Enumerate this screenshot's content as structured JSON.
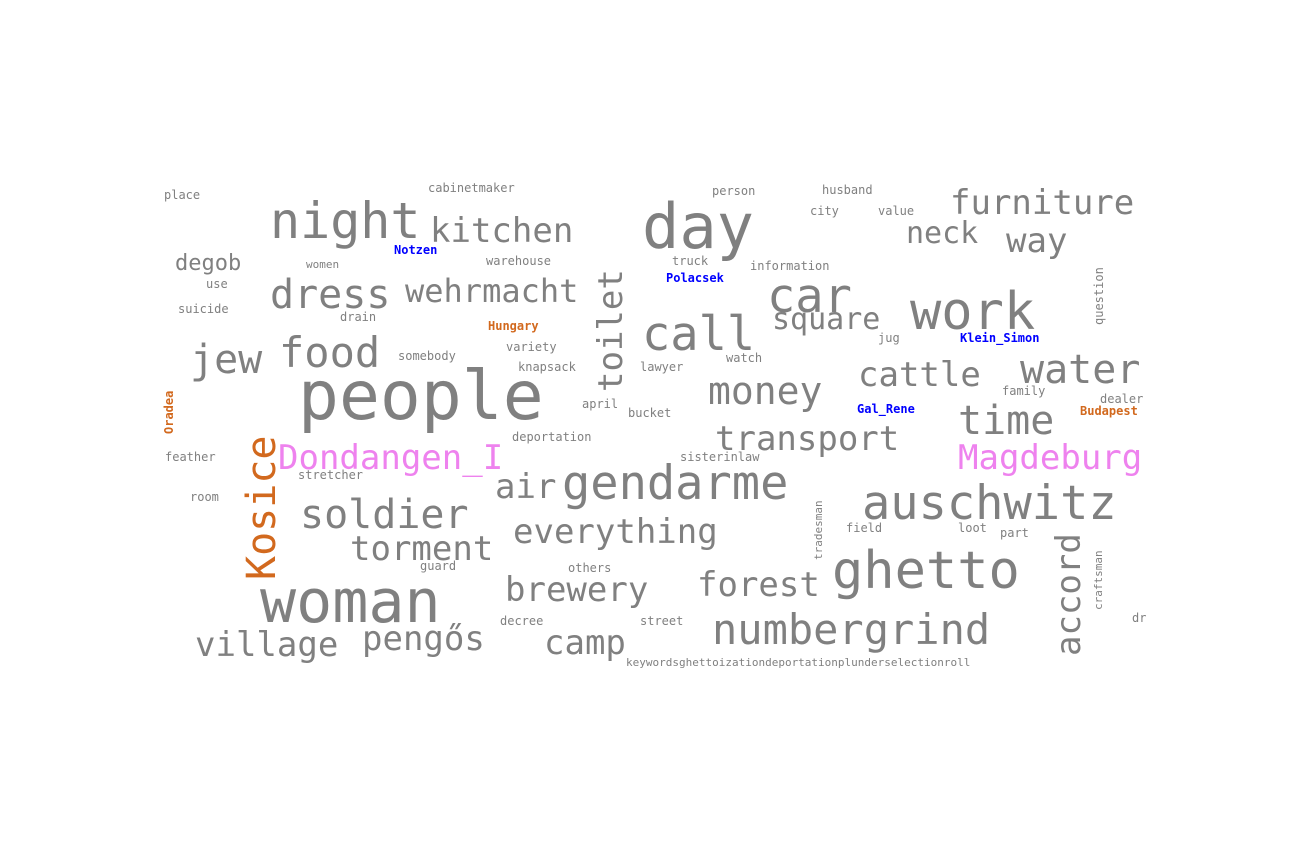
{
  "colors": {
    "default": "#808080",
    "orange": "#d2691e",
    "blue": "#0000ff",
    "magenta": "#ee82ee"
  },
  "words": [
    {
      "text": "people",
      "color": "#808080"
    },
    {
      "text": "woman",
      "color": "#808080"
    },
    {
      "text": "day",
      "color": "#808080"
    },
    {
      "text": "night",
      "color": "#808080"
    },
    {
      "text": "work",
      "color": "#808080"
    },
    {
      "text": "ghetto",
      "color": "#808080"
    },
    {
      "text": "auschwitz",
      "color": "#808080"
    },
    {
      "text": "gendarme",
      "color": "#808080"
    },
    {
      "text": "call",
      "color": "#808080"
    },
    {
      "text": "car",
      "color": "#808080"
    },
    {
      "text": "food",
      "color": "#808080"
    },
    {
      "text": "numbergrind",
      "color": "#808080"
    },
    {
      "text": "water",
      "color": "#808080"
    },
    {
      "text": "time",
      "color": "#808080"
    },
    {
      "text": "soldier",
      "color": "#808080"
    },
    {
      "text": "money",
      "color": "#808080"
    },
    {
      "text": "furniture",
      "color": "#808080"
    },
    {
      "text": "kitchen",
      "color": "#808080"
    },
    {
      "text": "dress",
      "color": "#808080"
    },
    {
      "text": "wehrmacht",
      "color": "#808080"
    },
    {
      "text": "jew",
      "color": "#808080"
    },
    {
      "text": "transport",
      "color": "#808080"
    },
    {
      "text": "cattle",
      "color": "#808080"
    },
    {
      "text": "square",
      "color": "#808080"
    },
    {
      "text": "neck",
      "color": "#808080"
    },
    {
      "text": "way",
      "color": "#808080"
    },
    {
      "text": "everything",
      "color": "#808080"
    },
    {
      "text": "torment",
      "color": "#808080"
    },
    {
      "text": "brewery",
      "color": "#808080"
    },
    {
      "text": "forest",
      "color": "#808080"
    },
    {
      "text": "village",
      "color": "#808080"
    },
    {
      "text": "pengős",
      "color": "#808080"
    },
    {
      "text": "camp",
      "color": "#808080"
    },
    {
      "text": "air",
      "color": "#808080"
    },
    {
      "text": "degob",
      "color": "#808080"
    },
    {
      "text": "toilet",
      "color": "#808080"
    },
    {
      "text": "accord",
      "color": "#808080"
    },
    {
      "text": "Kosice",
      "color": "#d2691e"
    },
    {
      "text": "Dondangen_I",
      "color": "#ee82ee"
    },
    {
      "text": "Magdeburg",
      "color": "#ee82ee"
    },
    {
      "text": "Notzen",
      "color": "#0000ff"
    },
    {
      "text": "Polacsek",
      "color": "#0000ff"
    },
    {
      "text": "Klein_Simon",
      "color": "#0000ff"
    },
    {
      "text": "Gal_Rene",
      "color": "#0000ff"
    },
    {
      "text": "Hungary",
      "color": "#d2691e"
    },
    {
      "text": "Budapest",
      "color": "#d2691e"
    },
    {
      "text": "Oradea",
      "color": "#d2691e"
    },
    {
      "text": "place",
      "color": "#808080"
    },
    {
      "text": "cabinetmaker",
      "color": "#808080"
    },
    {
      "text": "person",
      "color": "#808080"
    },
    {
      "text": "husband",
      "color": "#808080"
    },
    {
      "text": "city",
      "color": "#808080"
    },
    {
      "text": "value",
      "color": "#808080"
    },
    {
      "text": "women",
      "color": "#808080"
    },
    {
      "text": "warehouse",
      "color": "#808080"
    },
    {
      "text": "truck",
      "color": "#808080"
    },
    {
      "text": "information",
      "color": "#808080"
    },
    {
      "text": "use",
      "color": "#808080"
    },
    {
      "text": "suicide",
      "color": "#808080"
    },
    {
      "text": "drain",
      "color": "#808080"
    },
    {
      "text": "question",
      "color": "#808080"
    },
    {
      "text": "variety",
      "color": "#808080"
    },
    {
      "text": "jug",
      "color": "#808080"
    },
    {
      "text": "somebody",
      "color": "#808080"
    },
    {
      "text": "knapsack",
      "color": "#808080"
    },
    {
      "text": "lawyer",
      "color": "#808080"
    },
    {
      "text": "watch",
      "color": "#808080"
    },
    {
      "text": "family",
      "color": "#808080"
    },
    {
      "text": "dealer",
      "color": "#808080"
    },
    {
      "text": "april",
      "color": "#808080"
    },
    {
      "text": "bucket",
      "color": "#808080"
    },
    {
      "text": "deportation",
      "color": "#808080"
    },
    {
      "text": "feather",
      "color": "#808080"
    },
    {
      "text": "sisterinlaw",
      "color": "#808080"
    },
    {
      "text": "stretcher",
      "color": "#808080"
    },
    {
      "text": "room",
      "color": "#808080"
    },
    {
      "text": "tradesman",
      "color": "#808080"
    },
    {
      "text": "field",
      "color": "#808080"
    },
    {
      "text": "loot",
      "color": "#808080"
    },
    {
      "text": "part",
      "color": "#808080"
    },
    {
      "text": "craftsman",
      "color": "#808080"
    },
    {
      "text": "guard",
      "color": "#808080"
    },
    {
      "text": "others",
      "color": "#808080"
    },
    {
      "text": "decree",
      "color": "#808080"
    },
    {
      "text": "street",
      "color": "#808080"
    },
    {
      "text": "dr",
      "color": "#808080"
    },
    {
      "text": "keywordsghettoizationdeportationplunderselectionroll",
      "color": "#808080"
    }
  ]
}
